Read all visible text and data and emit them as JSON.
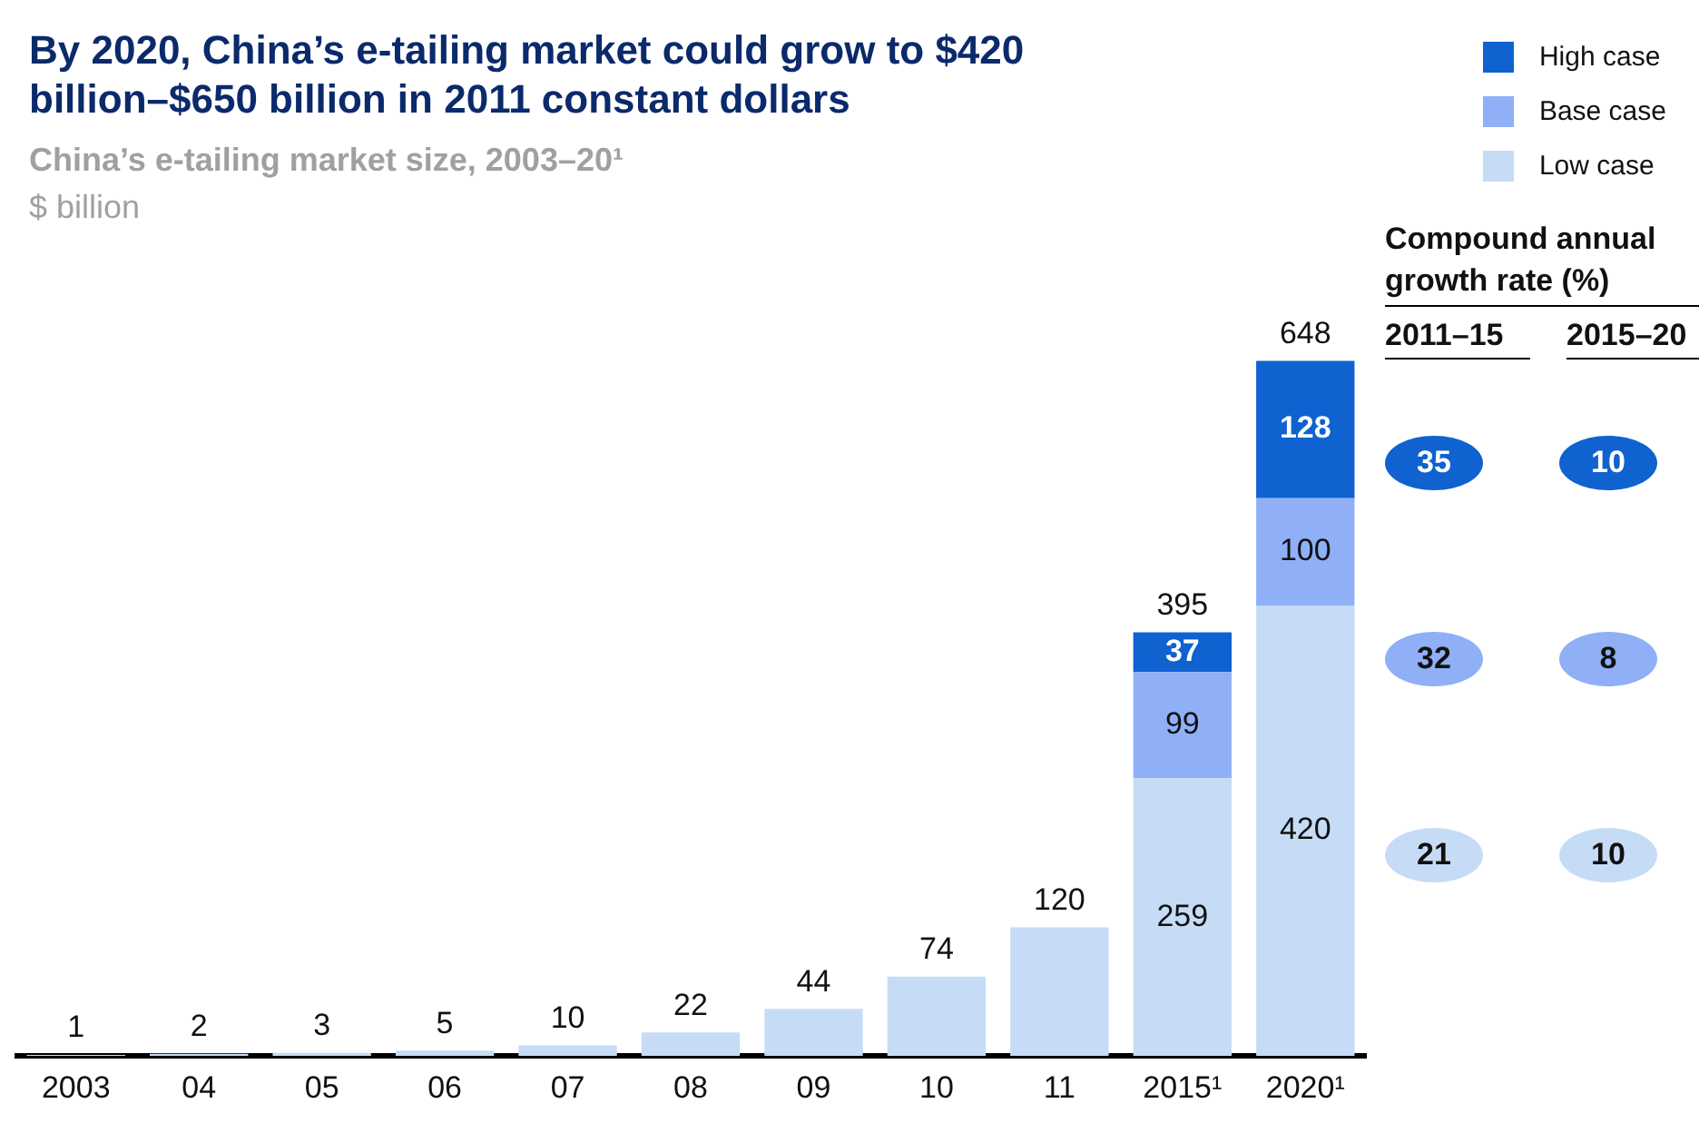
{
  "chart_data": [
    {
      "type": "bar",
      "title": "By 2020, China’s e-tailing market could grow to $420 billion–$650 billion in 2011 constant dollars",
      "subtitle": "China’s e-tailing market size, 2003–20¹",
      "ylabel": "$ billion",
      "categories": [
        "2003",
        "04",
        "05",
        "06",
        "07",
        "08",
        "09",
        "10",
        "11",
        "2015¹",
        "2020¹"
      ],
      "stacked": true,
      "data_labels": true,
      "legend": "top right",
      "grid": false,
      "series": [
        {
          "name": "Low case",
          "color": "#c6dcf6",
          "values": [
            1,
            2,
            3,
            5,
            10,
            22,
            44,
            74,
            120,
            259,
            420
          ]
        },
        {
          "name": "Base case",
          "color": "#8fb0f7",
          "values": [
            null,
            null,
            null,
            null,
            null,
            null,
            null,
            null,
            null,
            99,
            100
          ]
        },
        {
          "name": "High case",
          "color": "#0f62d0",
          "values": [
            null,
            null,
            null,
            null,
            null,
            null,
            null,
            null,
            null,
            37,
            128
          ]
        }
      ],
      "totals": [
        null,
        null,
        null,
        null,
        null,
        null,
        null,
        null,
        null,
        "395",
        "648"
      ]
    },
    {
      "type": "heatmap",
      "title": "Compound annual growth rate (%)",
      "categories": [
        "2011–15",
        "2015–20"
      ],
      "y_categories": [
        null,
        null,
        null
      ],
      "cells": [
        [
          35,
          10
        ],
        [
          32,
          8
        ],
        [
          21,
          10
        ]
      ],
      "data_labels": true
    }
  ]
}
